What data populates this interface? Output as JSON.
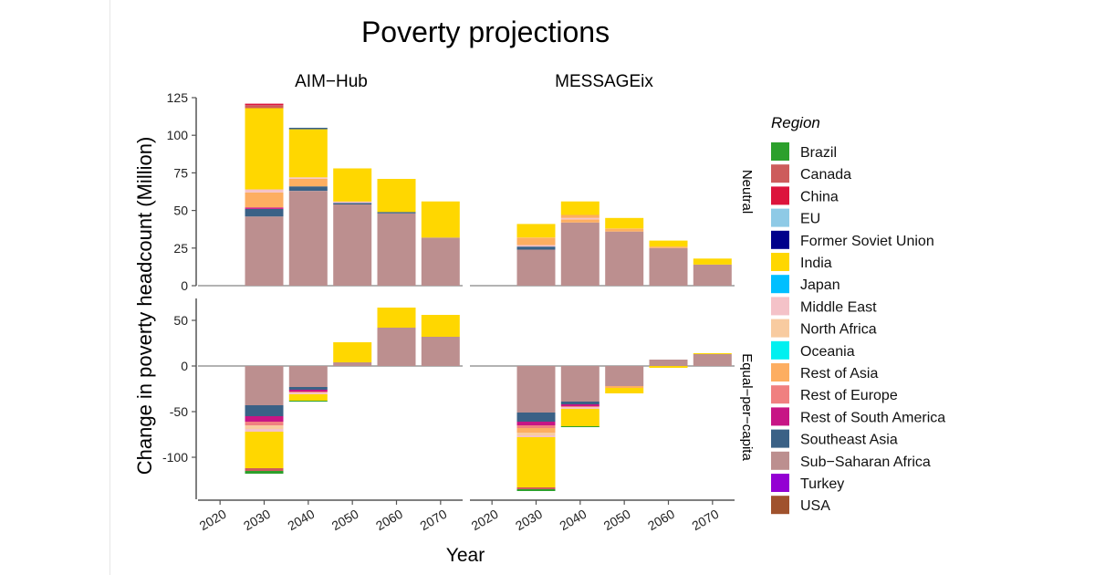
{
  "chart_data": {
    "type": "bar",
    "stacked": true,
    "title": "Poverty projections",
    "xlabel": "Year",
    "ylabel": "Change in poverty headcount (Million)",
    "categories": [
      "2020",
      "2030",
      "2040",
      "2050",
      "2060",
      "2070"
    ],
    "facet_columns": [
      "AIM−Hub",
      "MESSAGEix"
    ],
    "facet_rows": [
      "Neutral",
      "Equal−per−capita"
    ],
    "row_ylim": [
      [
        0,
        125
      ],
      [
        -120,
        70
      ]
    ],
    "row_ticks": [
      [
        0,
        25,
        50,
        75,
        100,
        125
      ],
      [
        -100,
        -50,
        0,
        50
      ]
    ],
    "legend_title": "Region",
    "legend_position": "right",
    "grid": false,
    "regions": [
      {
        "name": "Brazil",
        "color": "#2ca02c"
      },
      {
        "name": "Canada",
        "color": "#cd5c5c"
      },
      {
        "name": "China",
        "color": "#dc143c"
      },
      {
        "name": "EU",
        "color": "#8ecae6"
      },
      {
        "name": "Former Soviet Union",
        "color": "#00008b"
      },
      {
        "name": "India",
        "color": "#ffd700"
      },
      {
        "name": "Japan",
        "color": "#00bfff"
      },
      {
        "name": "Middle East",
        "color": "#f4c2c8"
      },
      {
        "name": "North Africa",
        "color": "#f8cba0"
      },
      {
        "name": "Oceania",
        "color": "#00f0f0"
      },
      {
        "name": "Rest of Asia",
        "color": "#fdae61"
      },
      {
        "name": "Rest of Europe",
        "color": "#f08080"
      },
      {
        "name": "Rest of South America",
        "color": "#c71585"
      },
      {
        "name": "Southeast Asia",
        "color": "#3a6186"
      },
      {
        "name": "Sub−Saharan Africa",
        "color": "#bc8f8f"
      },
      {
        "name": "Turkey",
        "color": "#9400d3"
      },
      {
        "name": "USA",
        "color": "#a0522d"
      }
    ],
    "panels": [
      {
        "model": "AIM−Hub",
        "scenario": "Neutral",
        "stacks": [
          [],
          [
            {
              "region": "Sub−Saharan Africa",
              "value": 46
            },
            {
              "region": "Southeast Asia",
              "value": 5
            },
            {
              "region": "Rest of South America",
              "value": 1
            },
            {
              "region": "Rest of Asia",
              "value": 10
            },
            {
              "region": "Middle East",
              "value": 2
            },
            {
              "region": "India",
              "value": 54
            },
            {
              "region": "Canada",
              "value": 2
            },
            {
              "region": "China",
              "value": 1
            }
          ],
          [
            {
              "region": "Sub−Saharan Africa",
              "value": 63
            },
            {
              "region": "Southeast Asia",
              "value": 3
            },
            {
              "region": "Rest of Asia",
              "value": 5
            },
            {
              "region": "Middle East",
              "value": 1
            },
            {
              "region": "India",
              "value": 32
            },
            {
              "region": "Southeast Asia",
              "value": 1
            }
          ],
          [
            {
              "region": "Sub−Saharan Africa",
              "value": 54
            },
            {
              "region": "Southeast Asia",
              "value": 1
            },
            {
              "region": "Middle East",
              "value": 1
            },
            {
              "region": "India",
              "value": 22
            }
          ],
          [
            {
              "region": "Sub−Saharan Africa",
              "value": 48
            },
            {
              "region": "Southeast Asia",
              "value": 1
            },
            {
              "region": "India",
              "value": 22
            }
          ],
          [
            {
              "region": "Sub−Saharan Africa",
              "value": 32
            },
            {
              "region": "India",
              "value": 24
            }
          ]
        ]
      },
      {
        "model": "MESSAGEix",
        "scenario": "Neutral",
        "stacks": [
          [],
          [
            {
              "region": "Sub−Saharan Africa",
              "value": 24
            },
            {
              "region": "Southeast Asia",
              "value": 2
            },
            {
              "region": "Middle East",
              "value": 1
            },
            {
              "region": "Rest of Asia",
              "value": 5
            },
            {
              "region": "India",
              "value": 9
            }
          ],
          [
            {
              "region": "Sub−Saharan Africa",
              "value": 42
            },
            {
              "region": "Rest of Asia",
              "value": 2
            },
            {
              "region": "Middle East",
              "value": 1
            },
            {
              "region": "Rest of Asia",
              "value": 2
            },
            {
              "region": "India",
              "value": 9
            }
          ],
          [
            {
              "region": "Sub−Saharan Africa",
              "value": 36
            },
            {
              "region": "Rest of Asia",
              "value": 2
            },
            {
              "region": "India",
              "value": 7
            }
          ],
          [
            {
              "region": "Sub−Saharan Africa",
              "value": 25
            },
            {
              "region": "Rest of Asia",
              "value": 1
            },
            {
              "region": "India",
              "value": 4
            }
          ],
          [
            {
              "region": "Sub−Saharan Africa",
              "value": 14
            },
            {
              "region": "India",
              "value": 4
            }
          ]
        ]
      },
      {
        "model": "AIM−Hub",
        "scenario": "Equal−per−capita",
        "stacks": [
          [],
          [
            {
              "region": "Sub−Saharan Africa",
              "value": -43
            },
            {
              "region": "Southeast Asia",
              "value": -12
            },
            {
              "region": "Rest of South America",
              "value": -6
            },
            {
              "region": "Rest of Europe",
              "value": -4
            },
            {
              "region": "North Africa",
              "value": -4
            },
            {
              "region": "Middle East",
              "value": -3
            },
            {
              "region": "India",
              "value": -40
            },
            {
              "region": "Canada",
              "value": -3
            },
            {
              "region": "Brazil",
              "value": -3
            }
          ],
          [
            {
              "region": "Sub−Saharan Africa",
              "value": -23
            },
            {
              "region": "Southeast Asia",
              "value": -3
            },
            {
              "region": "Rest of South America",
              "value": -2
            },
            {
              "region": "Rest of Europe",
              "value": -1
            },
            {
              "region": "Middle East",
              "value": -2
            },
            {
              "region": "India",
              "value": -7
            },
            {
              "region": "Brazil",
              "value": -1
            }
          ],
          [
            {
              "region": "Sub−Saharan Africa",
              "value": 4
            },
            {
              "region": "India",
              "value": 22
            }
          ],
          [
            {
              "region": "Sub−Saharan Africa",
              "value": 42
            },
            {
              "region": "India",
              "value": 22
            }
          ],
          [
            {
              "region": "Sub−Saharan Africa",
              "value": 32
            },
            {
              "region": "India",
              "value": 24
            }
          ]
        ]
      },
      {
        "model": "MESSAGEix",
        "scenario": "Equal−per−capita",
        "stacks": [
          [],
          [
            {
              "region": "Sub−Saharan Africa",
              "value": -51
            },
            {
              "region": "Southeast Asia",
              "value": -10
            },
            {
              "region": "Rest of South America",
              "value": -4
            },
            {
              "region": "Rest of Europe",
              "value": -3
            },
            {
              "region": "Rest of Asia",
              "value": -5
            },
            {
              "region": "North Africa",
              "value": -3
            },
            {
              "region": "Middle East",
              "value": -2
            },
            {
              "region": "India",
              "value": -55
            },
            {
              "region": "Canada",
              "value": -2
            },
            {
              "region": "Brazil",
              "value": -2
            }
          ],
          [
            {
              "region": "Sub−Saharan Africa",
              "value": -39
            },
            {
              "region": "Southeast Asia",
              "value": -3
            },
            {
              "region": "Rest of South America",
              "value": -2
            },
            {
              "region": "Rest of Europe",
              "value": -1
            },
            {
              "region": "Middle East",
              "value": -2
            },
            {
              "region": "India",
              "value": -19
            },
            {
              "region": "Brazil",
              "value": -1
            }
          ],
          [
            {
              "region": "Sub−Saharan Africa",
              "value": -22
            },
            {
              "region": "Rest of Asia",
              "value": -2
            },
            {
              "region": "India",
              "value": -6
            }
          ],
          [
            {
              "region": "Sub−Saharan Africa",
              "value": 7
            },
            {
              "region": "India",
              "value": -2
            }
          ],
          [
            {
              "region": "Sub−Saharan Africa",
              "value": 13
            },
            {
              "region": "India",
              "value": 1
            }
          ]
        ]
      }
    ]
  }
}
